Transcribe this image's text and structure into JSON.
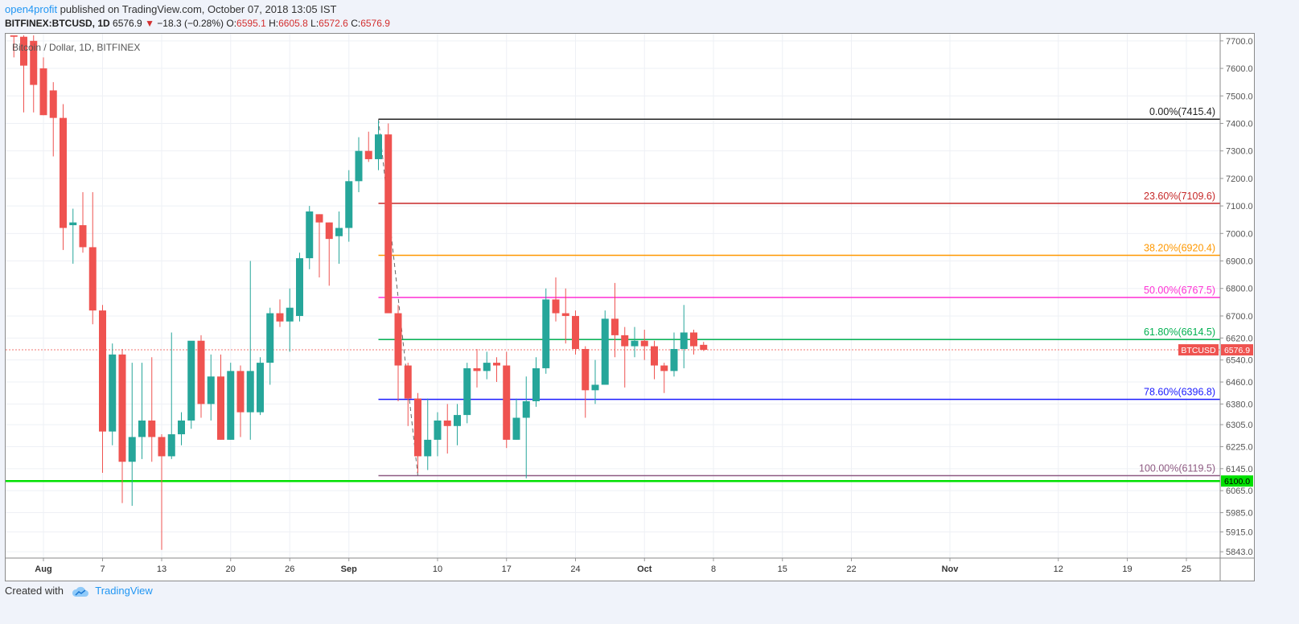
{
  "header": {
    "author": "open4profit",
    "published_text": " published on TradingView.com, October 07, 2018 13:05 IST",
    "symbol_line": "BITFINEX:BTCUSD, 1D",
    "last_price": "6576.9",
    "change_arrow": "▼",
    "change": "−18.3 (−0.28%)",
    "open_label": "O:",
    "open": "6595.1",
    "high_label": "H:",
    "high": "6605.8",
    "low_label": "L:",
    "low": "6572.6",
    "close_label": "C:",
    "close": "6576.9"
  },
  "footer": {
    "created_with": "Created with",
    "brand": "TradingView",
    "brand_icon": "tradingview-cloud-icon"
  },
  "colors": {
    "up": "#26a69a",
    "down": "#ef5350",
    "grid": "#eef0f5",
    "axis_text": "#555555"
  },
  "chart_data": {
    "type": "candlestick",
    "title": "Bitcoin / Dollar, 1D, BITFINEX",
    "ylim": [
      5820,
      7720
    ],
    "y_ticks": [
      {
        "v": 7700,
        "label": "7700.0"
      },
      {
        "v": 7600,
        "label": "7600.0"
      },
      {
        "v": 7500,
        "label": "7500.0"
      },
      {
        "v": 7400,
        "label": "7400.0"
      },
      {
        "v": 7300,
        "label": "7300.0"
      },
      {
        "v": 7200,
        "label": "7200.0"
      },
      {
        "v": 7100,
        "label": "7100.0"
      },
      {
        "v": 7000,
        "label": "7000.0"
      },
      {
        "v": 6900,
        "label": "6900.0"
      },
      {
        "v": 6800,
        "label": "6800.0"
      },
      {
        "v": 6700,
        "label": "6700.0"
      },
      {
        "v": 6620,
        "label": "6620.0"
      },
      {
        "v": 6540,
        "label": "6540.0"
      },
      {
        "v": 6460,
        "label": "6460.0"
      },
      {
        "v": 6380,
        "label": "6380.0"
      },
      {
        "v": 6305,
        "label": "6305.0"
      },
      {
        "v": 6225,
        "label": "6225.0"
      },
      {
        "v": 6145,
        "label": "6145.0"
      },
      {
        "v": 6065,
        "label": "6065.0"
      },
      {
        "v": 5985,
        "label": "5985.0"
      },
      {
        "v": 5915,
        "label": "5915.0"
      },
      {
        "v": 5843,
        "label": "5843.0"
      }
    ],
    "x_ticks": [
      {
        "date": "2018-08-01",
        "label": "Aug",
        "bold": true
      },
      {
        "date": "2018-08-07",
        "label": "7",
        "bold": false
      },
      {
        "date": "2018-08-13",
        "label": "13",
        "bold": false
      },
      {
        "date": "2018-08-20",
        "label": "20",
        "bold": false
      },
      {
        "date": "2018-08-26",
        "label": "26",
        "bold": false
      },
      {
        "date": "2018-09-01",
        "label": "Sep",
        "bold": true
      },
      {
        "date": "2018-09-10",
        "label": "10",
        "bold": false
      },
      {
        "date": "2018-09-17",
        "label": "17",
        "bold": false
      },
      {
        "date": "2018-09-24",
        "label": "24",
        "bold": false
      },
      {
        "date": "2018-10-01",
        "label": "Oct",
        "bold": true
      },
      {
        "date": "2018-10-08",
        "label": "8",
        "bold": false
      },
      {
        "date": "2018-10-15",
        "label": "15",
        "bold": false
      },
      {
        "date": "2018-10-22",
        "label": "22",
        "bold": false
      },
      {
        "date": "2018-11-01",
        "label": "Nov",
        "bold": true
      },
      {
        "date": "2018-11-12",
        "label": "12",
        "bold": false
      },
      {
        "date": "2018-11-19",
        "label": "19",
        "bold": false
      },
      {
        "date": "2018-11-25",
        "label": "25",
        "bold": false
      }
    ],
    "candles": [
      {
        "date": "2018-07-29",
        "o": 7720,
        "h": 7720,
        "l": 7640,
        "c": 7715
      },
      {
        "date": "2018-07-30",
        "o": 7715,
        "h": 7720,
        "l": 7440,
        "c": 7610
      },
      {
        "date": "2018-07-31",
        "o": 7700,
        "h": 7720,
        "l": 7440,
        "c": 7540
      },
      {
        "date": "2018-08-01",
        "o": 7600,
        "h": 7640,
        "l": 7430,
        "c": 7430
      },
      {
        "date": "2018-08-02",
        "o": 7520,
        "h": 7550,
        "l": 7280,
        "c": 7420
      },
      {
        "date": "2018-08-03",
        "o": 7420,
        "h": 7470,
        "l": 6940,
        "c": 7020
      },
      {
        "date": "2018-08-04",
        "o": 7030,
        "h": 7090,
        "l": 6890,
        "c": 7040
      },
      {
        "date": "2018-08-05",
        "o": 7030,
        "h": 7150,
        "l": 6930,
        "c": 6950
      },
      {
        "date": "2018-08-06",
        "o": 6950,
        "h": 7150,
        "l": 6670,
        "c": 6720
      },
      {
        "date": "2018-08-07",
        "o": 6720,
        "h": 6740,
        "l": 6130,
        "c": 6280
      },
      {
        "date": "2018-08-08",
        "o": 6280,
        "h": 6600,
        "l": 6230,
        "c": 6560
      },
      {
        "date": "2018-08-09",
        "o": 6560,
        "h": 6580,
        "l": 6020,
        "c": 6170
      },
      {
        "date": "2018-08-10",
        "o": 6170,
        "h": 6530,
        "l": 6010,
        "c": 6260
      },
      {
        "date": "2018-08-11",
        "o": 6260,
        "h": 6530,
        "l": 6180,
        "c": 6320
      },
      {
        "date": "2018-08-12",
        "o": 6320,
        "h": 6550,
        "l": 6170,
        "c": 6260
      },
      {
        "date": "2018-08-13",
        "o": 6260,
        "h": 6270,
        "l": 5850,
        "c": 6190
      },
      {
        "date": "2018-08-14",
        "o": 6190,
        "h": 6640,
        "l": 6180,
        "c": 6270
      },
      {
        "date": "2018-08-15",
        "o": 6270,
        "h": 6350,
        "l": 6230,
        "c": 6320
      },
      {
        "date": "2018-08-16",
        "o": 6320,
        "h": 6600,
        "l": 6290,
        "c": 6610
      },
      {
        "date": "2018-08-17",
        "o": 6610,
        "h": 6630,
        "l": 6330,
        "c": 6380
      },
      {
        "date": "2018-08-18",
        "o": 6380,
        "h": 6560,
        "l": 6320,
        "c": 6480
      },
      {
        "date": "2018-08-19",
        "o": 6480,
        "h": 6560,
        "l": 6250,
        "c": 6250
      },
      {
        "date": "2018-08-20",
        "o": 6250,
        "h": 6530,
        "l": 6250,
        "c": 6500
      },
      {
        "date": "2018-08-21",
        "o": 6500,
        "h": 6520,
        "l": 6260,
        "c": 6350
      },
      {
        "date": "2018-08-22",
        "o": 6350,
        "h": 6900,
        "l": 6250,
        "c": 6500
      },
      {
        "date": "2018-08-23",
        "o": 6350,
        "h": 6550,
        "l": 6340,
        "c": 6530
      },
      {
        "date": "2018-08-24",
        "o": 6530,
        "h": 6730,
        "l": 6450,
        "c": 6710
      },
      {
        "date": "2018-08-25",
        "o": 6710,
        "h": 6760,
        "l": 6660,
        "c": 6680
      },
      {
        "date": "2018-08-26",
        "o": 6680,
        "h": 6800,
        "l": 6570,
        "c": 6730
      },
      {
        "date": "2018-08-27",
        "o": 6700,
        "h": 6930,
        "l": 6680,
        "c": 6910
      },
      {
        "date": "2018-08-28",
        "o": 6910,
        "h": 7100,
        "l": 6870,
        "c": 7080
      },
      {
        "date": "2018-08-29",
        "o": 7070,
        "h": 7070,
        "l": 6840,
        "c": 7040
      },
      {
        "date": "2018-08-30",
        "o": 7040,
        "h": 7040,
        "l": 6810,
        "c": 6980
      },
      {
        "date": "2018-08-31",
        "o": 6990,
        "h": 7080,
        "l": 6890,
        "c": 7020
      },
      {
        "date": "2018-09-01",
        "o": 7020,
        "h": 7230,
        "l": 6970,
        "c": 7190
      },
      {
        "date": "2018-09-02",
        "o": 7190,
        "h": 7350,
        "l": 7150,
        "c": 7300
      },
      {
        "date": "2018-09-03",
        "o": 7300,
        "h": 7370,
        "l": 7260,
        "c": 7270
      },
      {
        "date": "2018-09-04",
        "o": 7270,
        "h": 7410,
        "l": 7230,
        "c": 7360
      },
      {
        "date": "2018-09-05",
        "o": 7360,
        "h": 7400,
        "l": 6720,
        "c": 6710
      },
      {
        "date": "2018-09-06",
        "o": 6710,
        "h": 6740,
        "l": 6390,
        "c": 6520
      },
      {
        "date": "2018-09-07",
        "o": 6520,
        "h": 6530,
        "l": 6300,
        "c": 6400
      },
      {
        "date": "2018-09-08",
        "o": 6400,
        "h": 6420,
        "l": 6130,
        "c": 6190
      },
      {
        "date": "2018-09-09",
        "o": 6190,
        "h": 6400,
        "l": 6140,
        "c": 6250
      },
      {
        "date": "2018-09-10",
        "o": 6250,
        "h": 6350,
        "l": 6190,
        "c": 6320
      },
      {
        "date": "2018-09-11",
        "o": 6320,
        "h": 6380,
        "l": 6200,
        "c": 6300
      },
      {
        "date": "2018-09-12",
        "o": 6300,
        "h": 6380,
        "l": 6230,
        "c": 6340
      },
      {
        "date": "2018-09-13",
        "o": 6340,
        "h": 6530,
        "l": 6310,
        "c": 6510
      },
      {
        "date": "2018-09-14",
        "o": 6510,
        "h": 6580,
        "l": 6440,
        "c": 6500
      },
      {
        "date": "2018-09-15",
        "o": 6500,
        "h": 6570,
        "l": 6470,
        "c": 6530
      },
      {
        "date": "2018-09-16",
        "o": 6530,
        "h": 6550,
        "l": 6460,
        "c": 6520
      },
      {
        "date": "2018-09-17",
        "o": 6520,
        "h": 6570,
        "l": 6220,
        "c": 6250
      },
      {
        "date": "2018-09-18",
        "o": 6250,
        "h": 6400,
        "l": 6250,
        "c": 6330
      },
      {
        "date": "2018-09-19",
        "o": 6330,
        "h": 6480,
        "l": 6110,
        "c": 6390
      },
      {
        "date": "2018-09-20",
        "o": 6390,
        "h": 6550,
        "l": 6370,
        "c": 6510
      },
      {
        "date": "2018-09-21",
        "o": 6510,
        "h": 6800,
        "l": 6490,
        "c": 6760
      },
      {
        "date": "2018-09-22",
        "o": 6760,
        "h": 6840,
        "l": 6680,
        "c": 6710
      },
      {
        "date": "2018-09-23",
        "o": 6710,
        "h": 6800,
        "l": 6600,
        "c": 6700
      },
      {
        "date": "2018-09-24",
        "o": 6700,
        "h": 6720,
        "l": 6560,
        "c": 6580
      },
      {
        "date": "2018-09-25",
        "o": 6580,
        "h": 6590,
        "l": 6330,
        "c": 6430
      },
      {
        "date": "2018-09-26",
        "o": 6430,
        "h": 6540,
        "l": 6380,
        "c": 6450
      },
      {
        "date": "2018-09-27",
        "o": 6450,
        "h": 6720,
        "l": 6450,
        "c": 6690
      },
      {
        "date": "2018-09-28",
        "o": 6690,
        "h": 6820,
        "l": 6550,
        "c": 6630
      },
      {
        "date": "2018-09-29",
        "o": 6630,
        "h": 6660,
        "l": 6440,
        "c": 6590
      },
      {
        "date": "2018-09-30",
        "o": 6590,
        "h": 6660,
        "l": 6550,
        "c": 6610
      },
      {
        "date": "2018-10-01",
        "o": 6610,
        "h": 6650,
        "l": 6540,
        "c": 6590
      },
      {
        "date": "2018-10-02",
        "o": 6590,
        "h": 6610,
        "l": 6470,
        "c": 6520
      },
      {
        "date": "2018-10-03",
        "o": 6520,
        "h": 6530,
        "l": 6420,
        "c": 6500
      },
      {
        "date": "2018-10-04",
        "o": 6500,
        "h": 6640,
        "l": 6480,
        "c": 6580
      },
      {
        "date": "2018-10-05",
        "o": 6580,
        "h": 6740,
        "l": 6510,
        "c": 6640
      },
      {
        "date": "2018-10-06",
        "o": 6640,
        "h": 6650,
        "l": 6560,
        "c": 6590
      },
      {
        "date": "2018-10-07",
        "o": 6595.1,
        "h": 6605.8,
        "l": 6572.6,
        "c": 6576.9
      }
    ],
    "fib": {
      "start_date": "2018-09-04",
      "levels": [
        {
          "label": "0.00%(7415.4)",
          "value": 7415.4,
          "color": "#222222"
        },
        {
          "label": "23.60%(7109.6)",
          "value": 7109.6,
          "color": "#c62828"
        },
        {
          "label": "38.20%(6920.4)",
          "value": 6920.4,
          "color": "#ff9800"
        },
        {
          "label": "50.00%(6767.5)",
          "value": 6767.5,
          "color": "#ff2fd4"
        },
        {
          "label": "61.80%(6614.5)",
          "value": 6614.5,
          "color": "#00b050"
        },
        {
          "label": "78.60%(6396.8)",
          "value": 6396.8,
          "color": "#1a1aff"
        },
        {
          "label": "100.00%(6119.5)",
          "value": 6119.5,
          "color": "#8e5a82"
        }
      ],
      "trend": [
        {
          "date": "2018-09-04",
          "value": 7415.4
        },
        {
          "date": "2018-09-08",
          "value": 6119.5
        }
      ]
    },
    "support_line": {
      "value": 6100.0,
      "label": "6100.0",
      "color": "#00e000"
    },
    "last_price_line": {
      "value": 6576.9,
      "label": "6576.9",
      "symbol_label": "BTCUSD",
      "color": "#ef5350"
    }
  }
}
